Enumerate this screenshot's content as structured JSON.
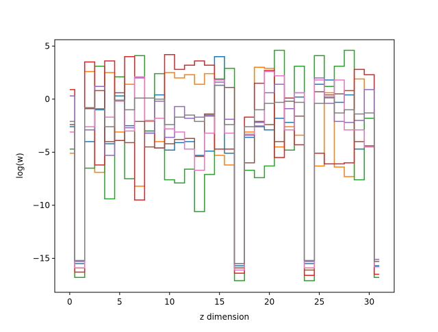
{
  "chart_data": {
    "type": "line",
    "step": "mid",
    "xlabel": "z dimension",
    "ylabel": "log(w)",
    "xlim": [
      -1.5,
      32.5
    ],
    "ylim": [
      -18.2,
      5.6
    ],
    "xticks": [
      0,
      5,
      10,
      15,
      20,
      25,
      30
    ],
    "yticks": [
      -15,
      -10,
      -5,
      0,
      5
    ],
    "x": [
      0,
      1,
      2,
      3,
      4,
      5,
      6,
      7,
      8,
      9,
      10,
      11,
      12,
      13,
      14,
      15,
      16,
      17,
      18,
      19,
      20,
      21,
      22,
      23,
      24,
      25,
      26,
      27,
      28,
      29,
      30,
      31
    ],
    "series": [
      {
        "color": "#1f77b4",
        "values": [
          -2.6,
          -15.5,
          -4.0,
          -1.0,
          -4.2,
          0.3,
          -2.5,
          2.1,
          -3.0,
          0.4,
          -4.8,
          -4.1,
          -4.0,
          -5.3,
          -4.9,
          4.0,
          -5.1,
          -15.7,
          -3.6,
          -2.6,
          -2.9,
          -1.8,
          -2.2,
          0.2,
          -15.5,
          1.4,
          1.8,
          -0.3,
          0.4,
          -4.7,
          -1.8,
          -15.7
        ]
      },
      {
        "color": "#ff7f0e",
        "values": [
          -5.1,
          -15.9,
          2.6,
          -6.9,
          2.5,
          -3.1,
          1.4,
          -8.2,
          -2.1,
          -4.0,
          2.5,
          2.0,
          2.3,
          1.4,
          2.4,
          -5.3,
          -6.2,
          -15.9,
          -3.1,
          3.0,
          2.9,
          -4.5,
          -2.6,
          -3.4,
          -15.9,
          -6.3,
          0.6,
          -6.4,
          -7.3,
          1.9,
          -4.5,
          -15.3
        ]
      },
      {
        "color": "#2ca02c",
        "values": [
          -4.7,
          -16.8,
          -6.5,
          3.1,
          -9.4,
          2.1,
          -7.5,
          4.1,
          -3.0,
          2.4,
          -7.6,
          -7.9,
          -6.6,
          -10.6,
          -7.1,
          1.9,
          2.9,
          -17.1,
          -6.7,
          -7.4,
          -6.3,
          4.6,
          -4.8,
          3.1,
          -17.1,
          4.1,
          1.2,
          3.1,
          4.6,
          -7.6,
          -1.8,
          -16.8
        ]
      },
      {
        "color": "#d62728",
        "values": [
          0.9,
          -16.3,
          3.5,
          -6.2,
          3.6,
          -3.9,
          4.0,
          -9.5,
          -3.2,
          -4.6,
          4.2,
          2.8,
          3.2,
          3.6,
          3.2,
          -4.7,
          -4.7,
          -16.4,
          -1.7,
          1.5,
          2.7,
          -5.5,
          0.1,
          -4.3,
          -16.6,
          -5.1,
          -6.1,
          -6.1,
          -6.0,
          2.8,
          2.3,
          -16.5
        ]
      },
      {
        "color": "#9467bd",
        "values": [
          0.3,
          -15.3,
          -2.9,
          1.2,
          -5.3,
          -0.1,
          -2.7,
          2.0,
          -3.2,
          -0.2,
          -3.6,
          -0.7,
          -1.8,
          -1.7,
          -1.5,
          1.6,
          -1.9,
          -15.5,
          -3.4,
          -2.2,
          0.6,
          1.4,
          -0.9,
          0.6,
          -15.3,
          2.0,
          -0.4,
          -2.1,
          -2.2,
          -2.0,
          0.9,
          -15.1
        ]
      },
      {
        "color": "#8c564b",
        "values": [
          -2.4,
          -15.9,
          -0.9,
          0.8,
          -4.0,
          0.6,
          -4.1,
          -2.1,
          -4.5,
          -4.6,
          -4.2,
          -3.8,
          -3.7,
          -5.4,
          -1.4,
          1.3,
          1.1,
          -15.9,
          -6.0,
          -2.1,
          -2.4,
          -4.0,
          -0.2,
          -1.6,
          -16.1,
          0.7,
          0.4,
          0.5,
          0.8,
          -4.0,
          -4.4,
          -15.8
        ]
      },
      {
        "color": "#e377c2",
        "values": [
          -3.1,
          -15.9,
          -2.6,
          -0.9,
          -1.7,
          -0.2,
          -3.0,
          2.1,
          -2.0,
          -1.8,
          -2.8,
          -3.1,
          -4.7,
          -6.7,
          -3.2,
          1.8,
          -3.2,
          -16.1,
          -3.3,
          -2.5,
          2.6,
          2.2,
          -2.9,
          0.6,
          -15.9,
          1.8,
          0.1,
          1.8,
          -2.9,
          -2.9,
          -4.5,
          -15.8
        ]
      },
      {
        "color": "#7f7f7f",
        "values": [
          -2.1,
          -15.2,
          -0.8,
          -0.9,
          -2.6,
          -0.1,
          -1.0,
          0.1,
          0.1,
          0.0,
          -2.4,
          -1.7,
          -1.5,
          -2.1,
          -1.6,
          1.3,
          -2.4,
          -15.5,
          -2.6,
          -1.0,
          -0.4,
          -0.3,
          -0.2,
          -0.3,
          -15.2,
          -0.4,
          0.2,
          -1.3,
          -1.0,
          -1.4,
          -1.3,
          -15.3
        ]
      }
    ]
  }
}
